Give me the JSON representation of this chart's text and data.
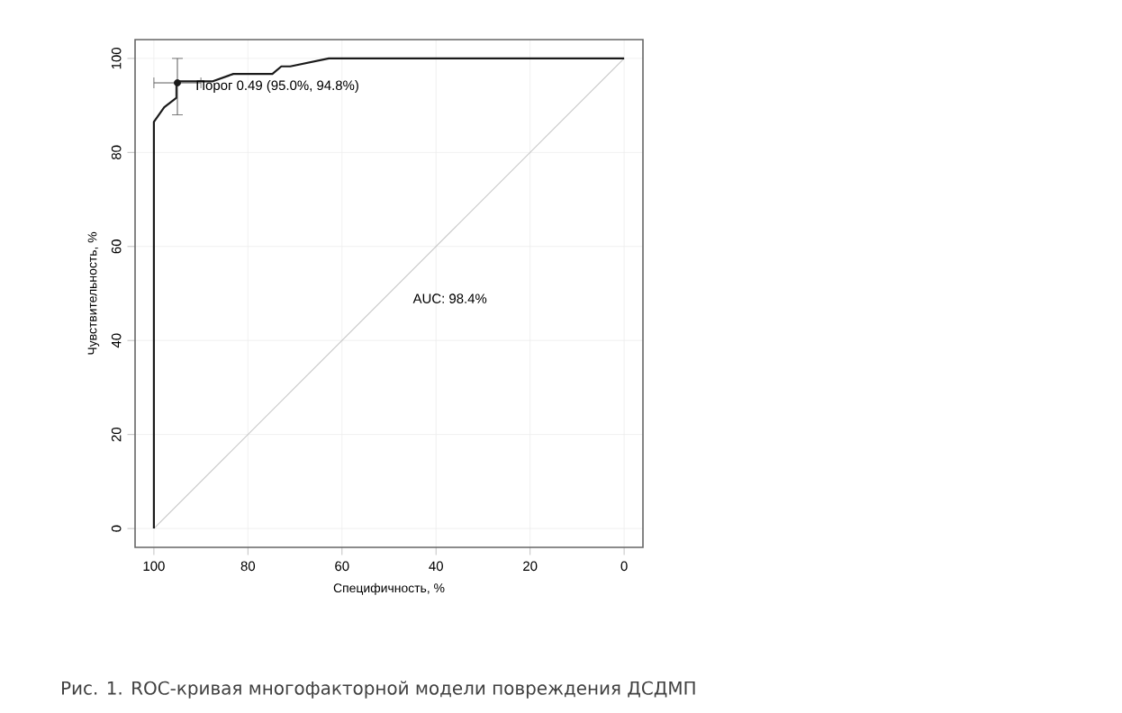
{
  "chart_data": {
    "type": "line",
    "xlabel": "Специфичность, %",
    "ylabel": "Чувствительность, %",
    "xlim": [
      104,
      -4
    ],
    "ylim": [
      -4,
      104
    ],
    "xticks": [
      100,
      80,
      60,
      40,
      20,
      0
    ],
    "yticks": [
      0,
      20,
      40,
      60,
      80,
      100
    ],
    "grid": true,
    "series": [
      {
        "color": "#c8c8c8",
        "x": [
          100,
          0
        ],
        "values": [
          0,
          100
        ]
      },
      {
        "color": "#1a1a1a",
        "x": [
          100,
          100,
          97.8,
          95.2,
          95.2,
          87.6,
          83.1,
          74.8,
          72.9,
          71,
          62.8,
          0
        ],
        "values": [
          0,
          86.5,
          89.6,
          91.6,
          95.1,
          95.1,
          96.7,
          96.7,
          98.3,
          98.3,
          100,
          100
        ]
      },
      {
        "type": "scatter",
        "color": "#1a1a1a",
        "x": [
          95
        ],
        "values": [
          94.8
        ],
        "errors": [
          [
            88,
            100
          ]
        ],
        "xerrors": [
          [
            90,
            100
          ]
        ]
      }
    ],
    "annotations": [
      {
        "text": "Порог 0.49 (95.0%, 94.8%)",
        "x": 95,
        "y": 94.8
      },
      "AUC: 98.4%",
      "Рис. 1. ROC-кривая многофакторной модели повреждения ДСДМП"
    ]
  }
}
